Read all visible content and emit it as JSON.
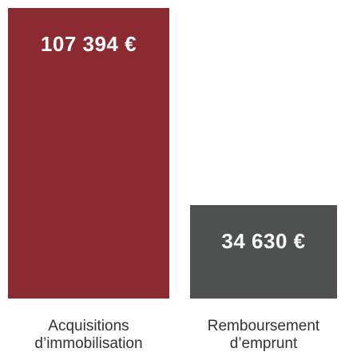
{
  "chart_data": {
    "type": "bar",
    "categories": [
      "Acquisitions d’immobilisation",
      "Remboursement d’emprunt"
    ],
    "values": [
      107394,
      34630
    ],
    "value_labels": [
      "107 394 €",
      "34 630 €"
    ],
    "colors": [
      "#8b2a31",
      "#4e5150"
    ]
  }
}
